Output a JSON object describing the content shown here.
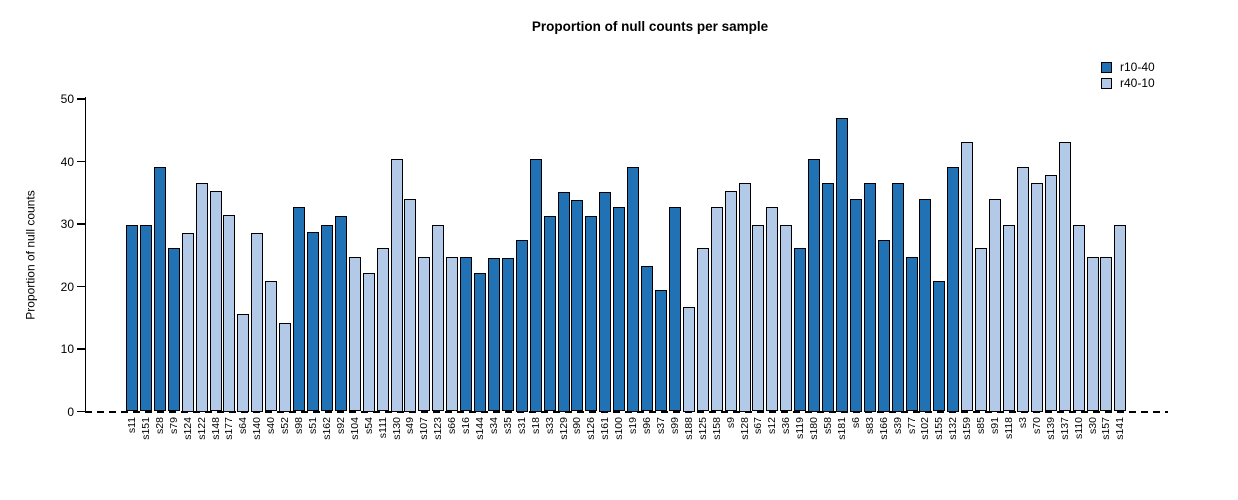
{
  "chart_data": {
    "type": "bar",
    "title": "Proportion of null counts per sample",
    "xlabel": "",
    "ylabel": "Proportion of null counts",
    "ylim": [
      0,
      50
    ],
    "yticks": [
      0,
      10,
      20,
      30,
      40,
      50
    ],
    "grid": false,
    "baseline": {
      "y": 0,
      "style": "dashed"
    },
    "legend_position": "top-right",
    "legend": [
      {
        "label": "r10-40",
        "color": "#2171B5"
      },
      {
        "label": "r40-10",
        "color": "#B3C9E8"
      }
    ],
    "bars": [
      {
        "sample": "s11",
        "value": 29.9,
        "series": "r10-40"
      },
      {
        "sample": "s151",
        "value": 29.9,
        "series": "r10-40"
      },
      {
        "sample": "s28",
        "value": 39.1,
        "series": "r10-40"
      },
      {
        "sample": "s79",
        "value": 26.1,
        "series": "r10-40"
      },
      {
        "sample": "s124",
        "value": 28.6,
        "series": "r40-10"
      },
      {
        "sample": "s122",
        "value": 36.6,
        "series": "r40-10"
      },
      {
        "sample": "s148",
        "value": 35.3,
        "series": "r40-10"
      },
      {
        "sample": "s177",
        "value": 31.4,
        "series": "r40-10"
      },
      {
        "sample": "s64",
        "value": 15.6,
        "series": "r40-10"
      },
      {
        "sample": "s140",
        "value": 28.6,
        "series": "r40-10"
      },
      {
        "sample": "s40",
        "value": 20.9,
        "series": "r40-10"
      },
      {
        "sample": "s52",
        "value": 14.2,
        "series": "r40-10"
      },
      {
        "sample": "s98",
        "value": 32.7,
        "series": "r10-40"
      },
      {
        "sample": "s51",
        "value": 28.7,
        "series": "r10-40"
      },
      {
        "sample": "s162",
        "value": 29.9,
        "series": "r10-40"
      },
      {
        "sample": "s92",
        "value": 31.3,
        "series": "r10-40"
      },
      {
        "sample": "s104",
        "value": 24.7,
        "series": "r40-10"
      },
      {
        "sample": "s54",
        "value": 22.2,
        "series": "r40-10"
      },
      {
        "sample": "s111",
        "value": 26.1,
        "series": "r40-10"
      },
      {
        "sample": "s130",
        "value": 40.4,
        "series": "r40-10"
      },
      {
        "sample": "s49",
        "value": 34.0,
        "series": "r40-10"
      },
      {
        "sample": "s107",
        "value": 24.7,
        "series": "r40-10"
      },
      {
        "sample": "s123",
        "value": 29.9,
        "series": "r40-10"
      },
      {
        "sample": "s66",
        "value": 24.7,
        "series": "r40-10"
      },
      {
        "sample": "s16",
        "value": 24.7,
        "series": "r10-40"
      },
      {
        "sample": "s144",
        "value": 22.2,
        "series": "r10-40"
      },
      {
        "sample": "s34",
        "value": 24.5,
        "series": "r10-40"
      },
      {
        "sample": "s35",
        "value": 24.5,
        "series": "r10-40"
      },
      {
        "sample": "s31",
        "value": 27.4,
        "series": "r10-40"
      },
      {
        "sample": "s18",
        "value": 40.4,
        "series": "r10-40"
      },
      {
        "sample": "s33",
        "value": 31.3,
        "series": "r10-40"
      },
      {
        "sample": "s129",
        "value": 35.2,
        "series": "r10-40"
      },
      {
        "sample": "s90",
        "value": 33.9,
        "series": "r10-40"
      },
      {
        "sample": "s126",
        "value": 31.3,
        "series": "r10-40"
      },
      {
        "sample": "s161",
        "value": 35.2,
        "series": "r10-40"
      },
      {
        "sample": "s100",
        "value": 32.7,
        "series": "r10-40"
      },
      {
        "sample": "s19",
        "value": 39.2,
        "series": "r10-40"
      },
      {
        "sample": "s96",
        "value": 23.3,
        "series": "r10-40"
      },
      {
        "sample": "s37",
        "value": 19.5,
        "series": "r10-40"
      },
      {
        "sample": "s99",
        "value": 32.7,
        "series": "r10-40"
      },
      {
        "sample": "s188",
        "value": 16.8,
        "series": "r40-10"
      },
      {
        "sample": "s125",
        "value": 26.1,
        "series": "r40-10"
      },
      {
        "sample": "s158",
        "value": 32.7,
        "series": "r40-10"
      },
      {
        "sample": "s9",
        "value": 35.3,
        "series": "r40-10"
      },
      {
        "sample": "s128",
        "value": 36.6,
        "series": "r40-10"
      },
      {
        "sample": "s67",
        "value": 29.9,
        "series": "r40-10"
      },
      {
        "sample": "s12",
        "value": 32.7,
        "series": "r40-10"
      },
      {
        "sample": "s36",
        "value": 29.9,
        "series": "r40-10"
      },
      {
        "sample": "s119",
        "value": 26.1,
        "series": "r10-40"
      },
      {
        "sample": "s180",
        "value": 40.4,
        "series": "r10-40"
      },
      {
        "sample": "s58",
        "value": 36.6,
        "series": "r10-40"
      },
      {
        "sample": "s181",
        "value": 47.0,
        "series": "r10-40"
      },
      {
        "sample": "s6",
        "value": 34.0,
        "series": "r10-40"
      },
      {
        "sample": "s83",
        "value": 36.6,
        "series": "r10-40"
      },
      {
        "sample": "s166",
        "value": 27.4,
        "series": "r10-40"
      },
      {
        "sample": "s39",
        "value": 36.6,
        "series": "r10-40"
      },
      {
        "sample": "s77",
        "value": 24.7,
        "series": "r10-40"
      },
      {
        "sample": "s102",
        "value": 34.0,
        "series": "r10-40"
      },
      {
        "sample": "s155",
        "value": 20.9,
        "series": "r10-40"
      },
      {
        "sample": "s132",
        "value": 39.2,
        "series": "r10-40"
      },
      {
        "sample": "s159",
        "value": 43.1,
        "series": "r40-10"
      },
      {
        "sample": "s85",
        "value": 26.1,
        "series": "r40-10"
      },
      {
        "sample": "s91",
        "value": 34.0,
        "series": "r40-10"
      },
      {
        "sample": "s118",
        "value": 29.9,
        "series": "r40-10"
      },
      {
        "sample": "s3",
        "value": 39.2,
        "series": "r40-10"
      },
      {
        "sample": "s70",
        "value": 36.6,
        "series": "r40-10"
      },
      {
        "sample": "s139",
        "value": 37.9,
        "series": "r40-10"
      },
      {
        "sample": "s137",
        "value": 43.1,
        "series": "r40-10"
      },
      {
        "sample": "s110",
        "value": 29.9,
        "series": "r40-10"
      },
      {
        "sample": "s30",
        "value": 24.7,
        "series": "r40-10"
      },
      {
        "sample": "s157",
        "value": 24.7,
        "series": "r40-10"
      },
      {
        "sample": "s141",
        "value": 29.9,
        "series": "r40-10"
      }
    ]
  }
}
